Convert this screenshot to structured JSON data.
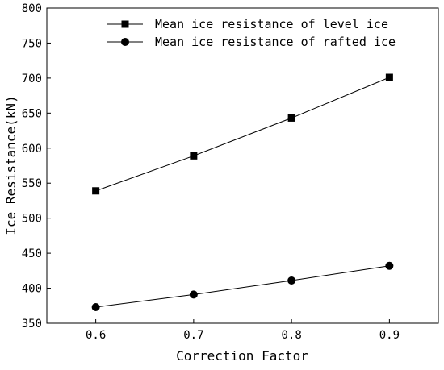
{
  "chart_data": {
    "type": "line",
    "title": "",
    "xlabel": "Correction Factor",
    "ylabel": "Ice Resistance(kN)",
    "x": [
      0.6,
      0.7,
      0.8,
      0.9
    ],
    "x_ticks": [
      "0.6",
      "0.7",
      "0.8",
      "0.9"
    ],
    "xlim": [
      0.55,
      0.95
    ],
    "ylim": [
      350,
      800
    ],
    "y_ticks": [
      "350",
      "400",
      "450",
      "500",
      "550",
      "600",
      "650",
      "700",
      "750",
      "800"
    ],
    "grid": false,
    "legend_position": "top-right",
    "series": [
      {
        "name": "Mean ice resistance of level ice",
        "marker": "square",
        "color": "#000000",
        "values": [
          539,
          589,
          643,
          701
        ]
      },
      {
        "name": "Mean ice resistance of rafted ice",
        "marker": "circle",
        "color": "#000000",
        "values": [
          373,
          391,
          411,
          432
        ]
      }
    ]
  }
}
